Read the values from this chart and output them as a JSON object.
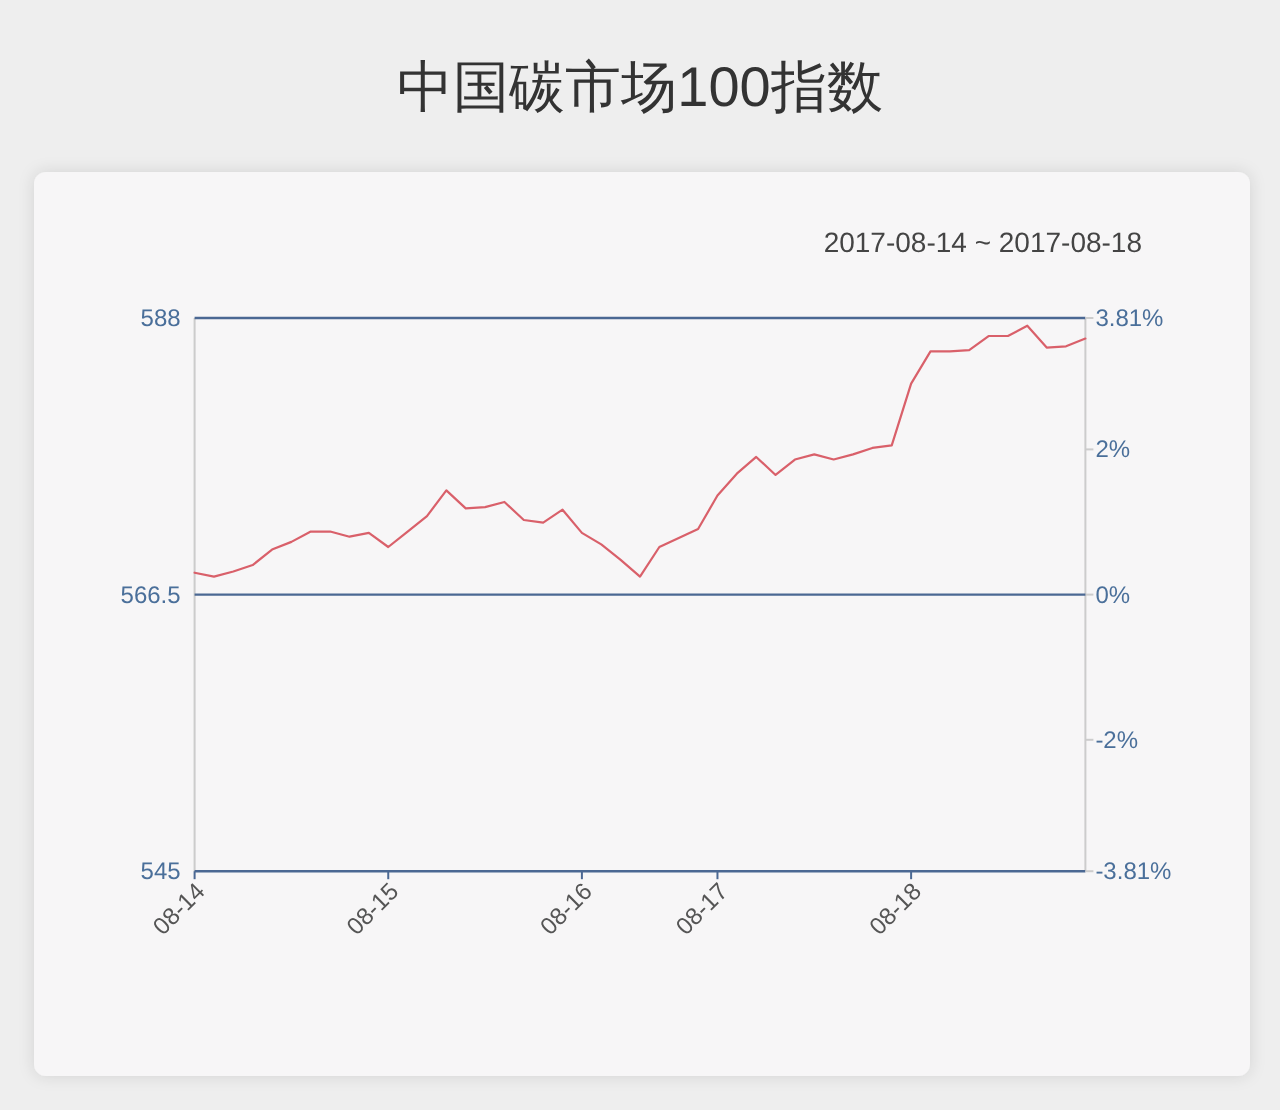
{
  "chart_data": {
    "type": "line",
    "title": "中国碳市场100指数",
    "subtitle": "2017-08-14 ~ 2017-08-18",
    "categories": [
      "08-14",
      null,
      null,
      null,
      null,
      null,
      null,
      null,
      null,
      null,
      "08-15",
      null,
      null,
      null,
      null,
      null,
      null,
      null,
      null,
      null,
      "08-16",
      null,
      null,
      null,
      null,
      null,
      null,
      "08-17",
      null,
      null,
      null,
      null,
      null,
      null,
      null,
      null,
      null,
      "08-18",
      null,
      null,
      null,
      null,
      null,
      null,
      null,
      null,
      null
    ],
    "series": [
      {
        "color": "#d9606a",
        "values": [
          568.2,
          567.9,
          568.3,
          568.8,
          570.0,
          570.6,
          571.4,
          571.4,
          571.0,
          571.3,
          570.2,
          571.4,
          572.6,
          574.6,
          573.2,
          573.3,
          573.7,
          572.3,
          572.1,
          573.1,
          571.3,
          570.4,
          569.2,
          567.9,
          570.2,
          570.9,
          571.6,
          574.2,
          575.9,
          577.2,
          575.8,
          577.0,
          577.4,
          577.0,
          577.4,
          577.9,
          578.1,
          582.9,
          585.4,
          585.4,
          585.5,
          586.6,
          586.6,
          587.4,
          585.7,
          585.8,
          586.4
        ]
      }
    ],
    "ylim": [
      545,
      588
    ],
    "yticks": [
      545,
      566.5,
      588
    ],
    "y2lim": [
      -3.81,
      3.81
    ],
    "y2ticks": [
      {
        "value": -3.81,
        "label": "-3.81%"
      },
      {
        "value": -2,
        "label": "-2%"
      },
      {
        "value": 0,
        "label": "0%"
      },
      {
        "value": 2,
        "label": "2%"
      },
      {
        "value": 3.81,
        "label": "3.81%"
      }
    ],
    "ref_lines": [
      {
        "axis": "y",
        "value": 566.5,
        "color": "#4b6893"
      }
    ]
  }
}
